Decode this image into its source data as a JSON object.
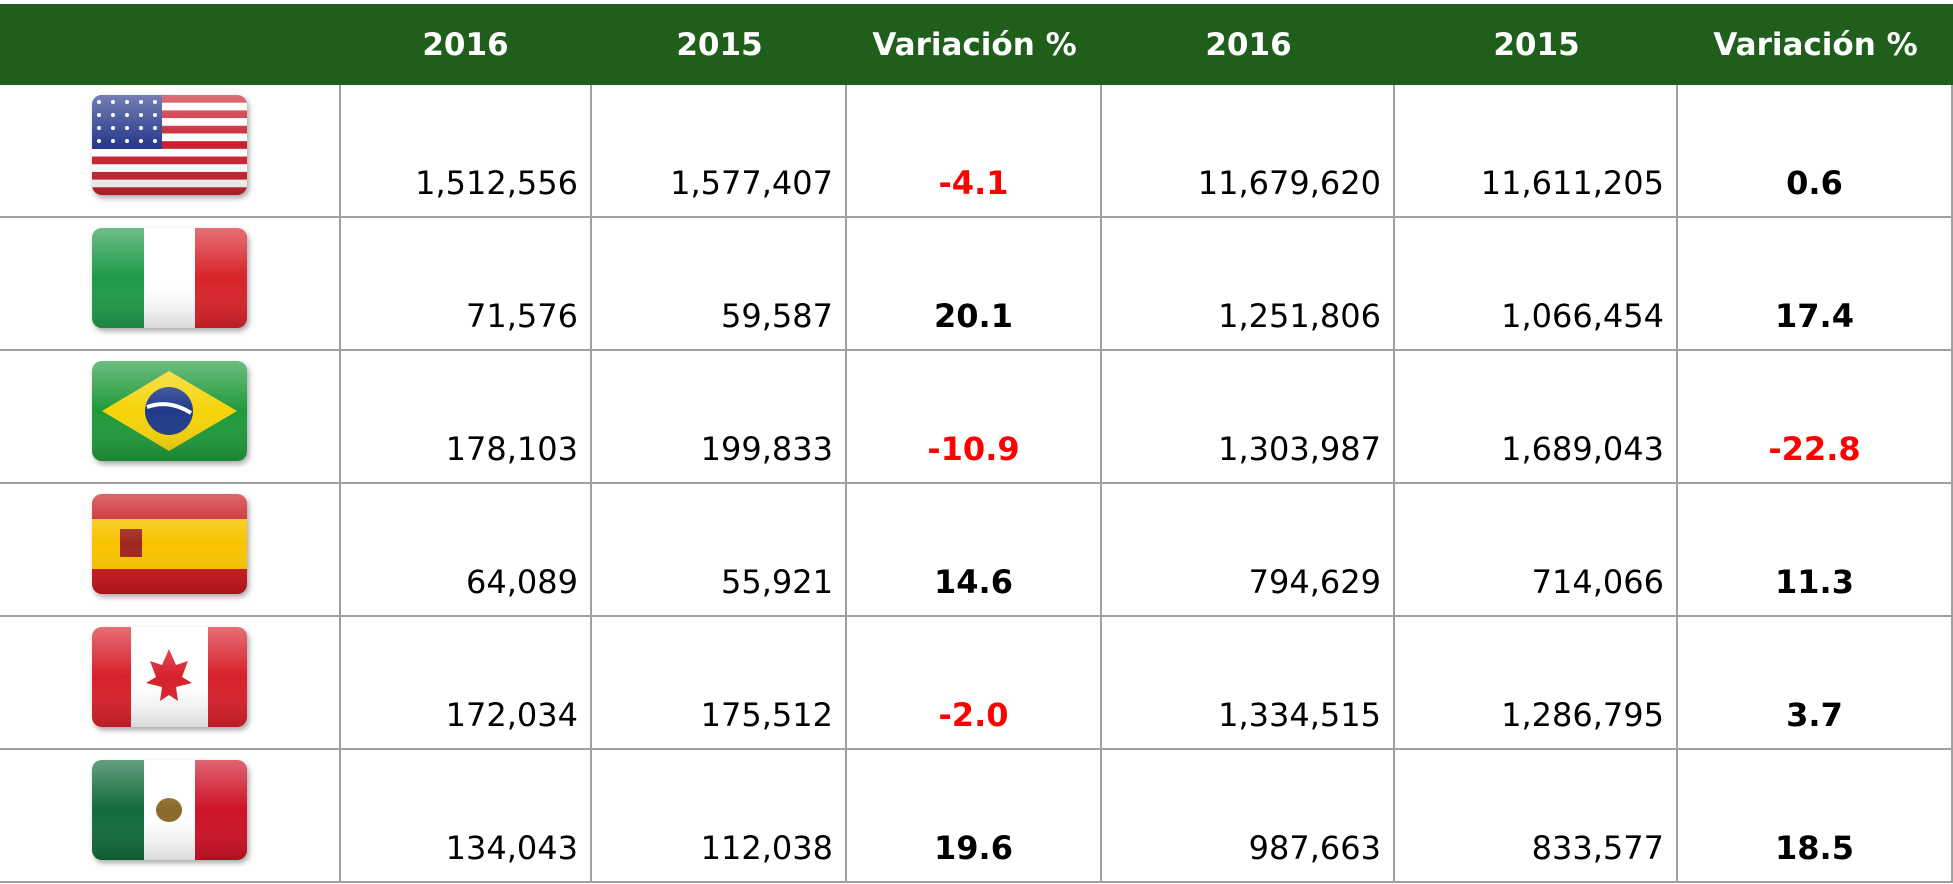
{
  "table": {
    "header": [
      "2016",
      "2015",
      "Variación %",
      "2016",
      "2015",
      "Variación %"
    ],
    "rows": [
      [
        "1,512,556",
        "1,577,407",
        "-4.1",
        "11,679,620",
        "11,611,205",
        "0.6"
      ],
      [
        "71,576",
        "59,587",
        "20.1",
        "1,251,806",
        "1,066,454",
        "17.4"
      ],
      [
        "178,103",
        "199,833",
        "-10.9",
        "1,303,987",
        "1,689,043",
        "-22.8"
      ],
      [
        "64,089",
        "55,921",
        "14.6",
        "794,629",
        "714,066",
        "11.3"
      ],
      [
        "172,034",
        "175,512",
        "-2.0",
        "1,334,515",
        "1,286,795",
        "3.7"
      ],
      [
        "134,043",
        "112,038",
        "19.6",
        "987,663",
        "833,577",
        "18.5"
      ]
    ]
  }
}
